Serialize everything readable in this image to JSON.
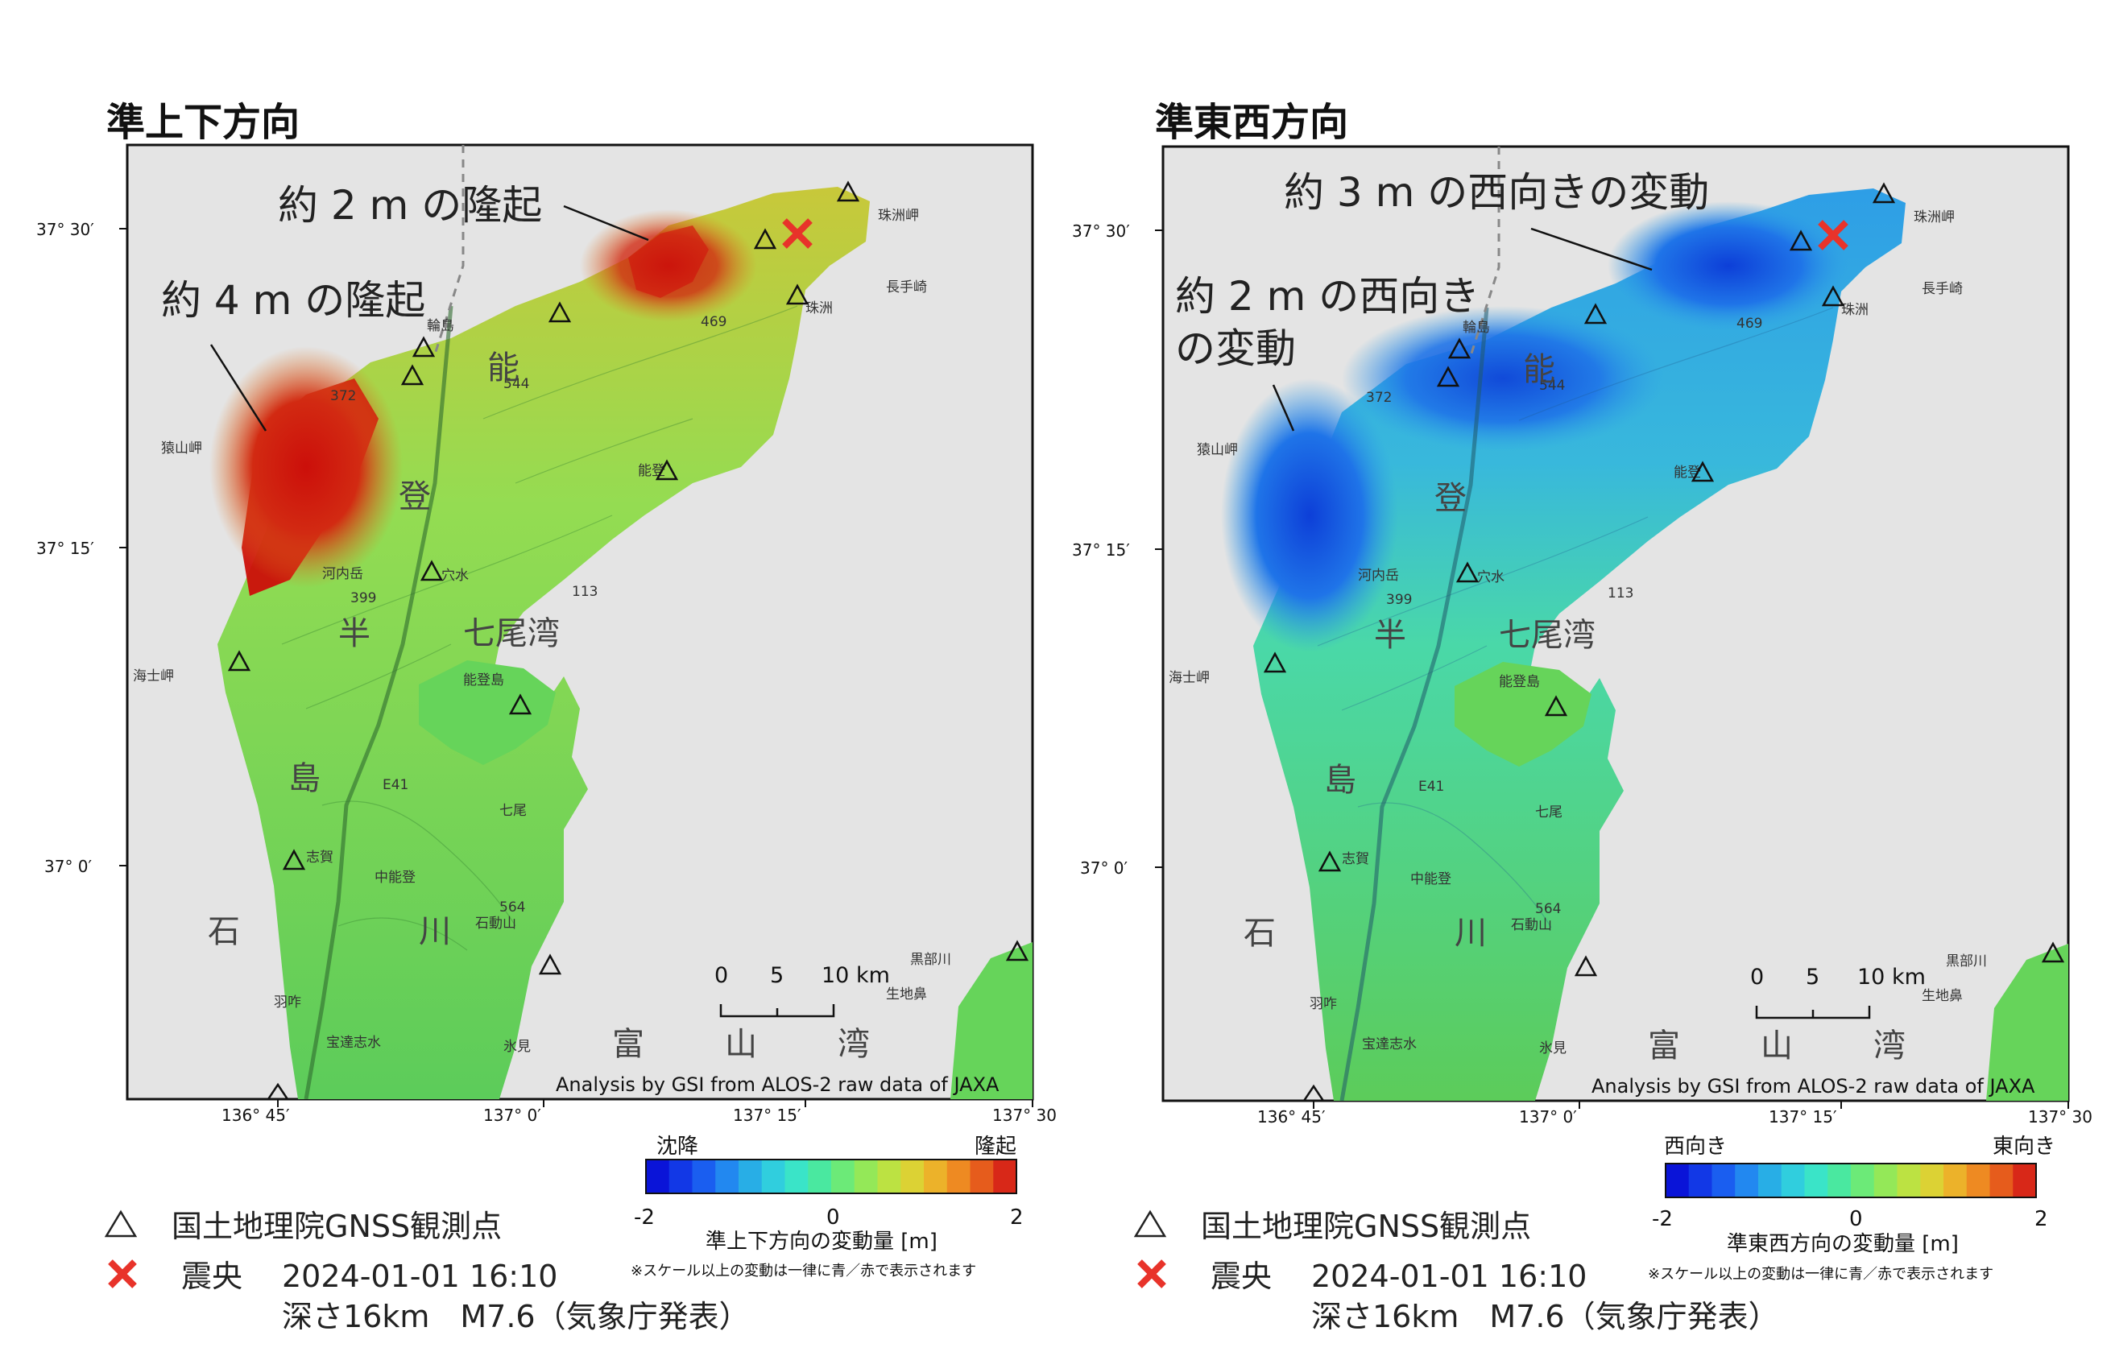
{
  "panels": [
    {
      "title": "準上下方向",
      "annotations": [
        "約 2 m の隆起",
        "約 4 m の隆起"
      ],
      "colorbar": {
        "left_label": "沈降",
        "right_label": "隆起",
        "min": "-2",
        "mid": "0",
        "max": "2",
        "title": "準上下方向の変動量 [m]",
        "note": "※スケール以上の変動は一律に青／赤で表示されます",
        "colors": [
          "#0a14d8",
          "#1238e6",
          "#1a5ef0",
          "#2288f0",
          "#28aee6",
          "#30cede",
          "#3ae4c8",
          "#4ae8a0",
          "#6cea78",
          "#94e858",
          "#bce242",
          "#dcd234",
          "#ecb22a",
          "#ee8a22",
          "#e65c1c",
          "#d82818"
        ]
      },
      "map_fill": {
        "base": "#66d45a",
        "top_north": "#c8c83a",
        "uplift_strong": "#cc0f0a",
        "uplift_mid": "#e07a1e"
      }
    },
    {
      "title": "準東西方向",
      "annotations": [
        "約 3 m の西向きの変動",
        "約 2 m の西向き",
        "の変動"
      ],
      "colorbar": {
        "left_label": "西向き",
        "right_label": "東向き",
        "min": "-2",
        "mid": "0",
        "max": "2",
        "title": "準東西方向の変動量 [m]",
        "note": "※スケール以上の変動は一律に青／赤で表示されます",
        "colors": [
          "#0a14d8",
          "#1238e6",
          "#1a5ef0",
          "#2288f0",
          "#28aee6",
          "#30cede",
          "#3ae4c8",
          "#4ae8a0",
          "#6cea78",
          "#94e858",
          "#bce242",
          "#dcd234",
          "#ecb22a",
          "#ee8a22",
          "#e65c1c",
          "#d82818"
        ]
      },
      "map_fill": {
        "base": "#66d45a",
        "top_north": "#2e9ee6",
        "west_strong": "#0d3fd8",
        "west_mid": "#1f74e8"
      }
    }
  ],
  "shared": {
    "lat_labels": [
      "37° 30′",
      "37° 15′",
      "37° 0′"
    ],
    "lon_labels": [
      "136° 45′",
      "137° 0′",
      "137° 15′",
      "137° 30"
    ],
    "scale": {
      "zero": "0",
      "five": "5",
      "ten": "10 km"
    },
    "credit": "Analysis by GSI from ALOS-2 raw data of JAXA",
    "places": {
      "suzu_cape": "珠洲岬",
      "nagate": "長手崎",
      "suzu": "珠洲",
      "wajima": "輪島",
      "saruyama": "猿山岬",
      "kochidake": "河内岳",
      "anamizu": "穴水",
      "noto": "能登",
      "nanao_bay": "七尾湾",
      "notojima": "能登島",
      "nanao": "七尾",
      "shika": "志賀",
      "nakanoto": "中能登",
      "sekidosan": "石動山",
      "hakui": "羽咋",
      "hodatsushimizu": "宝達志水",
      "himi": "氷見",
      "kurobe": "黒部川",
      "ikuji": "生地鼻",
      "kaishi": "海士岬",
      "noto_char1": "能",
      "noto_char2": "登",
      "noto_char3": "半",
      "noto_char4": "島",
      "ishikawa1": "石",
      "ishikawa2": "川",
      "toyama1": "富",
      "toyama2": "山",
      "toyama3": "湾",
      "elev1": "469",
      "elev2": "544",
      "elev3": "372",
      "elev4": "399",
      "elev5": "113",
      "elev6": "564",
      "road1": "E41"
    }
  },
  "legend": {
    "gnss_label": "国土地理院GNSS観測点",
    "epicenter_label": "震央",
    "epicenter_time": "2024-01-01 16:10",
    "epicenter_detail": "深さ16km　M7.6（気象庁発表）"
  },
  "colors": {
    "epicenter": "#e8332a",
    "sea": "#e4e4e4",
    "frame": "#111111"
  }
}
